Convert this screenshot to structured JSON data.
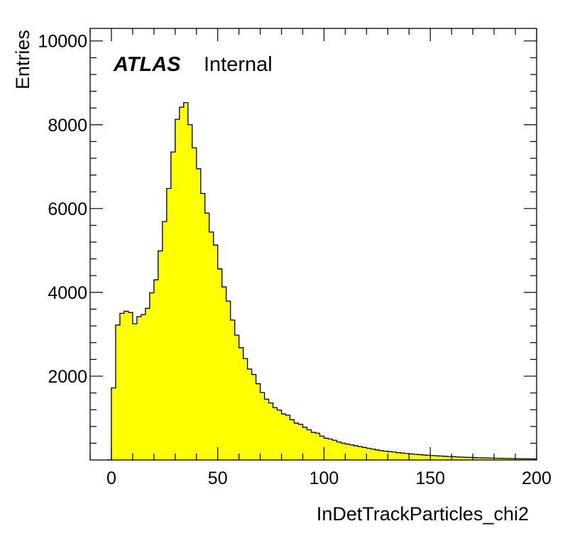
{
  "chart_data": {
    "type": "bar",
    "histogram": true,
    "title": "",
    "xlabel": "InDetTrackParticles_chi2",
    "ylabel": "Entries",
    "annotation": {
      "bold_text": "ATLAS",
      "text": "Internal",
      "placement": "top-left"
    },
    "xlim": [
      -10,
      200
    ],
    "ylim": [
      0,
      10300
    ],
    "x_ticks": [
      0,
      50,
      100,
      150,
      200
    ],
    "x_tick_labels": [
      "0",
      "50",
      "100",
      "150",
      "200"
    ],
    "y_ticks": [
      2000,
      4000,
      6000,
      8000,
      10000
    ],
    "y_tick_labels": [
      "2000",
      "4000",
      "6000",
      "8000",
      "10000"
    ],
    "bin_width": 2,
    "x_start": -2,
    "values": [
      0,
      1720,
      3220,
      3500,
      3550,
      3520,
      3250,
      3420,
      3470,
      3620,
      3990,
      4300,
      4990,
      5690,
      6480,
      7350,
      8130,
      8420,
      8530,
      8000,
      7450,
      6950,
      6360,
      5890,
      5440,
      5130,
      4560,
      4130,
      3790,
      3340,
      2980,
      2680,
      2420,
      2170,
      2040,
      1820,
      1610,
      1450,
      1360,
      1250,
      1190,
      1100,
      1070,
      960,
      880,
      850,
      780,
      720,
      660,
      640,
      570,
      520,
      500,
      470,
      430,
      400,
      380,
      360,
      340,
      320,
      300,
      280,
      260,
      240,
      225,
      210,
      200,
      190,
      175,
      165,
      155,
      145,
      135,
      128,
      120,
      112,
      106,
      100,
      94,
      88,
      82,
      77,
      72,
      68,
      64,
      60,
      56,
      53,
      50,
      47,
      44,
      42,
      40,
      38,
      36,
      34,
      32,
      30,
      28,
      27,
      26
    ],
    "style": {
      "fill": "#ffff00",
      "stroke": "#000000"
    },
    "grid": false,
    "legend": "none"
  }
}
